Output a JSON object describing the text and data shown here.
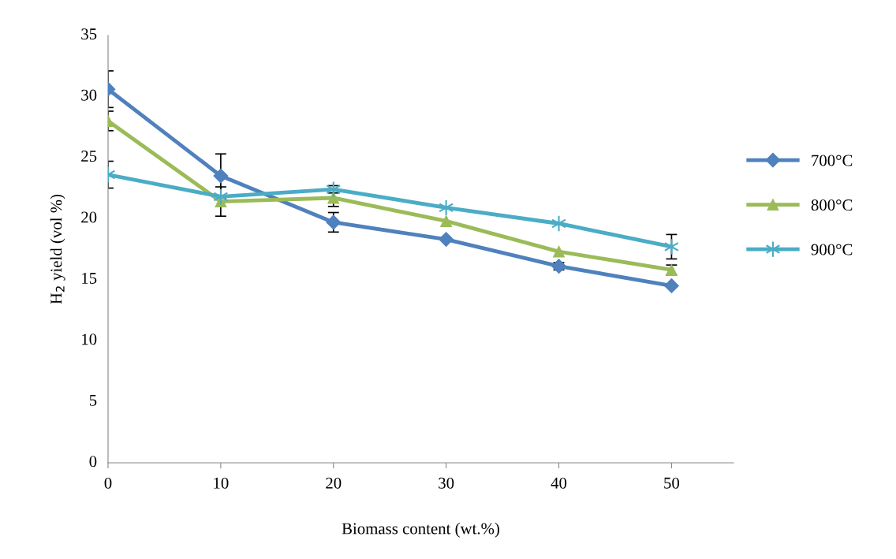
{
  "chart_data": {
    "type": "line",
    "xlabel": "Biomass content (wt.%)",
    "ylabel": "H$_{2}$ yield (vol %)",
    "categories": [
      "0",
      "10",
      "20",
      "30",
      "40",
      "50"
    ],
    "ylim": [
      0,
      35
    ],
    "yticks": [
      0,
      5,
      10,
      15,
      20,
      25,
      30,
      35
    ],
    "grid": false,
    "legend": "right",
    "line_style": "solid",
    "series": [
      {
        "name": "700°C",
        "color": "#4f81bd",
        "marker": "diamond",
        "values": [
          30.6,
          23.5,
          19.7,
          18.3,
          16.1,
          14.5
        ],
        "errors": [
          1.5,
          1.8,
          0.8,
          null,
          0.3,
          null
        ]
      },
      {
        "name": "800°C",
        "color": "#9bbb59",
        "marker": "triangle",
        "values": [
          28.0,
          21.4,
          21.7,
          19.8,
          17.3,
          15.8
        ],
        "errors": [
          0.8,
          1.2,
          0.7,
          null,
          null,
          0.4
        ]
      },
      {
        "name": "900°C",
        "color": "#4bacc6",
        "marker": "cross",
        "values": [
          23.6,
          21.8,
          22.4,
          20.9,
          19.6,
          17.7
        ],
        "errors": [
          1.1,
          null,
          0.3,
          null,
          null,
          1.0
        ]
      }
    ]
  }
}
